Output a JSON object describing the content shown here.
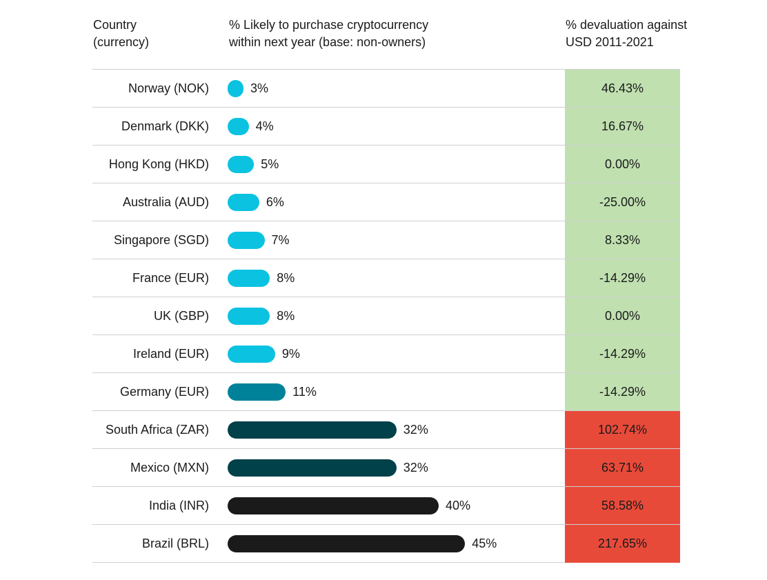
{
  "headers": {
    "country": "Country\n(currency)",
    "likely": "% Likely to purchase cryptocurrency\nwithin next year (base: non-owners)",
    "devaluation": "% devaluation against\nUSD 2011-2021"
  },
  "colors": {
    "bar_light": "#0bc2e1",
    "bar_mid": "#00819a",
    "bar_dark": "#00414a",
    "bar_black": "#1a1a1a",
    "deval_positive": "#c0e0b0",
    "deval_negative": "#e84a3a"
  },
  "chart_data": {
    "type": "bar",
    "orientation": "horizontal",
    "xlim": [
      0,
      45
    ],
    "categories": [
      "Norway (NOK)",
      "Denmark (DKK)",
      "Hong Kong (HKD)",
      "Australia (AUD)",
      "Singapore (SGD)",
      "France (EUR)",
      "UK (GBP)",
      "Ireland (EUR)",
      "Germany (EUR)",
      "South Africa (ZAR)",
      "Mexico (MXN)",
      "India (INR)",
      "Brazil (BRL)"
    ],
    "values": [
      3,
      4,
      5,
      6,
      7,
      8,
      8,
      9,
      11,
      32,
      32,
      40,
      45
    ],
    "value_labels": [
      "3%",
      "4%",
      "5%",
      "6%",
      "7%",
      "8%",
      "8%",
      "9%",
      "11%",
      "32%",
      "32%",
      "40%",
      "45%"
    ],
    "bar_colors": [
      "bar_light",
      "bar_light",
      "bar_light",
      "bar_light",
      "bar_light",
      "bar_light",
      "bar_light",
      "bar_light",
      "bar_mid",
      "bar_dark",
      "bar_dark",
      "bar_black",
      "bar_black"
    ],
    "devaluation": [
      "46.43%",
      "16.67%",
      "0.00%",
      "-25.00%",
      "8.33%",
      "-14.29%",
      "0.00%",
      "-14.29%",
      "-14.29%",
      "102.74%",
      "63.71%",
      "58.58%",
      "217.65%"
    ],
    "devaluation_colors": [
      "deval_positive",
      "deval_positive",
      "deval_positive",
      "deval_positive",
      "deval_positive",
      "deval_positive",
      "deval_positive",
      "deval_positive",
      "deval_positive",
      "deval_negative",
      "deval_negative",
      "deval_negative",
      "deval_negative"
    ]
  }
}
